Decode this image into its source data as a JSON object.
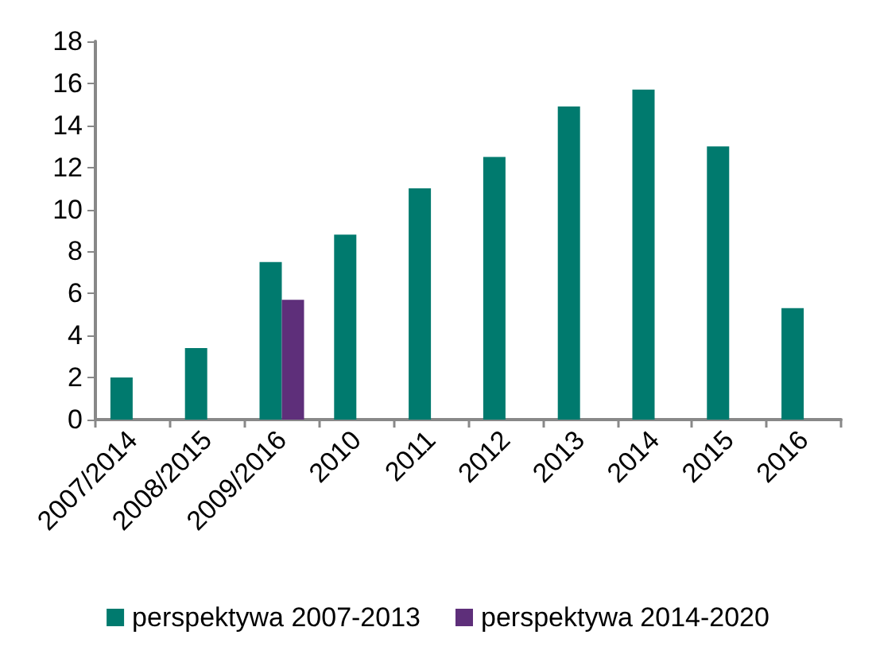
{
  "chart_data": {
    "type": "bar",
    "categories": [
      "2007/2014",
      "2008/2015",
      "2009/2016",
      "2010",
      "2011",
      "2012",
      "2013",
      "2014",
      "2015",
      "2016"
    ],
    "series": [
      {
        "name": "perspektywa 2007-2013",
        "color": "#007a6e",
        "values": [
          2.0,
          3.4,
          7.5,
          8.8,
          11.0,
          12.5,
          14.9,
          15.7,
          13.0,
          5.3
        ]
      },
      {
        "name": "perspektywa 2014-2020",
        "color": "#5e2f7a",
        "values": [
          null,
          null,
          5.7,
          null,
          null,
          null,
          null,
          null,
          null,
          null
        ]
      }
    ],
    "ylim": [
      0,
      18
    ],
    "yticks": [
      0,
      2,
      4,
      6,
      8,
      10,
      12,
      14,
      16,
      18
    ],
    "grid": false,
    "legend": "bottom"
  }
}
